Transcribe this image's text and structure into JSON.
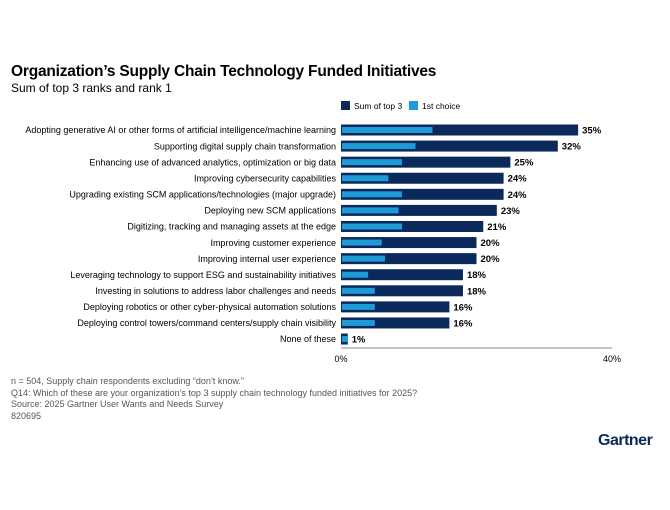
{
  "chart_data": {
    "type": "bar",
    "orientation": "horizontal",
    "title": "Organization’s Supply Chain Technology Funded Initiatives",
    "subtitle": "Sum of top 3 ranks and rank 1",
    "categories": [
      "Adopting generative AI or other forms of artificial intelligence/machine learning",
      "Supporting digital supply chain transformation",
      "Enhancing use of advanced analytics, optimization or big data",
      "Improving cybersecurity capabilities",
      "Upgrading existing SCM applications/technologies (major upgrade)",
      "Deploying new SCM applications",
      "Digitizing, tracking and managing assets at the edge",
      "Improving customer experience",
      "Improving internal user experience",
      "Leveraging technology to support ESG and sustainability initiatives",
      "Investing in solutions to address labor challenges and needs",
      "Deploying robotics or other cyber-physical automation solutions",
      "Deploying control towers/command centers/supply chain visibility",
      "None of these"
    ],
    "series": [
      {
        "name": "Sum of top 3",
        "color": "#0b2a5b",
        "values": [
          35,
          32,
          25,
          24,
          24,
          23,
          21,
          20,
          20,
          18,
          18,
          16,
          16,
          1
        ],
        "labels": [
          "35%",
          "32%",
          "25%",
          "24%",
          "24%",
          "23%",
          "21%",
          "20%",
          "20%",
          "18%",
          "18%",
          "16%",
          "16%",
          "1%"
        ]
      },
      {
        "name": "1st choice",
        "color": "#1e9bd7",
        "values": [
          13.5,
          11,
          9,
          7,
          9,
          8.5,
          9,
          6,
          6.5,
          4,
          5,
          5,
          5,
          1
        ]
      }
    ],
    "xlim": [
      0,
      40
    ],
    "xticks": [
      "0%",
      "40%"
    ],
    "legend_position": "top",
    "grid": false
  },
  "footer": {
    "lines": [
      "n = 504, Supply chain respondents excluding “don’t know.”",
      "Q14: Which of these are your organization’s top 3 supply chain technology funded initiatives for 2025?",
      "Source: 2025 Gartner User Wants and Needs Survey",
      "820695"
    ]
  },
  "logo": "Gartner"
}
